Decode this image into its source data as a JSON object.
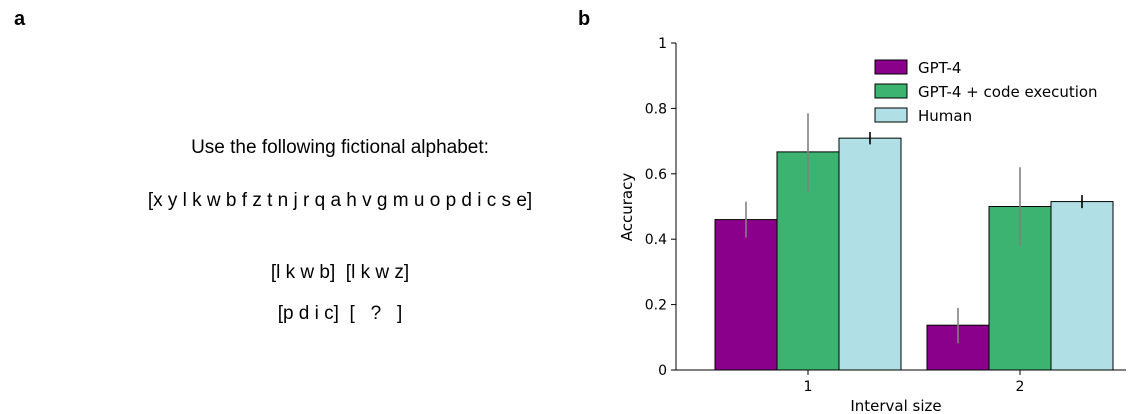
{
  "panel_a": {
    "label": "a",
    "intro": "Use the following fictional alphabet:",
    "alphabet": "[x y l k w b f z t n j r q a h v g m u o p d i c s e]",
    "row1": "[l k w b]  [l k w z]",
    "row2": "[p d i c]  [   ?   ]"
  },
  "panel_b": {
    "label": "b"
  },
  "colors": {
    "gpt4": "#8b008b",
    "gpt4_code": "#3cb371",
    "human": "#b0e0e6",
    "error": "#808080",
    "error_human": "#000000"
  },
  "chart_data": {
    "type": "bar",
    "categories": [
      "1",
      "2"
    ],
    "xlabel": "Interval size",
    "ylabel": "Accuracy",
    "ylim": [
      0,
      1
    ],
    "yticks": [
      "0",
      "0.2",
      "0.4",
      "0.6",
      "0.8",
      "1"
    ],
    "legend_position": "top-right",
    "grid": false,
    "series": [
      {
        "name": "GPT-4",
        "values": [
          0.46,
          0.137
        ],
        "err_low": [
          0.405,
          0.082
        ],
        "err_high": [
          0.515,
          0.19
        ]
      },
      {
        "name": "GPT-4 + code execution",
        "values": [
          0.667,
          0.5
        ],
        "err_low": [
          0.545,
          0.38
        ],
        "err_high": [
          0.785,
          0.62
        ]
      },
      {
        "name": "Human",
        "values": [
          0.709,
          0.515
        ],
        "err_low": [
          0.69,
          0.495
        ],
        "err_high": [
          0.728,
          0.535
        ]
      }
    ]
  }
}
